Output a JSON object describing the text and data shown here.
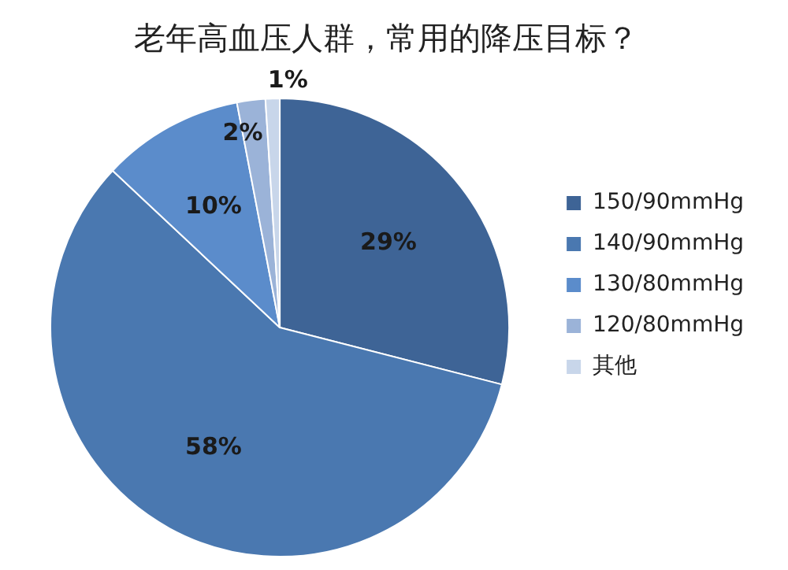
{
  "chart_data": {
    "type": "pie",
    "title": "老年高血压人群，常用的降压目标？",
    "categories": [
      "150/90mmHg",
      "140/90mmHg",
      "130/80mmHg",
      "120/80mmHg",
      "其他"
    ],
    "values": [
      29,
      58,
      10,
      2,
      1
    ],
    "colors": [
      "#3e6496",
      "#4a78b0",
      "#5b8ccb",
      "#9bb3d8",
      "#c8d6ea"
    ],
    "value_labels": [
      "29%",
      "58%",
      "10%",
      "2%",
      "1%"
    ],
    "legend": "right"
  }
}
